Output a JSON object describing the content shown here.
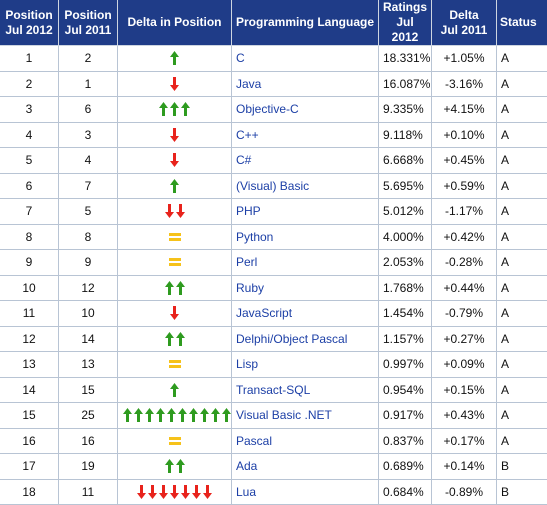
{
  "headers": {
    "pos_2012": [
      "Position",
      "Jul 2012"
    ],
    "pos_2011": [
      "Position",
      "Jul 2011"
    ],
    "delta_pos": "Delta in Position",
    "language": "Programming Language",
    "ratings": [
      "Ratings",
      "Jul 2012"
    ],
    "delta": [
      "Delta",
      "Jul 2011"
    ],
    "status": "Status"
  },
  "colors": {
    "header_bg": "#1f3c88",
    "up": "#2e9b1f",
    "down": "#e8231c",
    "same": "#f6c21a",
    "link": "#1c3fa6"
  },
  "rows": [
    {
      "pos2012": "1",
      "pos2011": "2",
      "move": "up",
      "count": 1,
      "language": "C",
      "rating": "18.331%",
      "delta": "+1.05%",
      "status": "A"
    },
    {
      "pos2012": "2",
      "pos2011": "1",
      "move": "down",
      "count": 1,
      "language": "Java",
      "rating": "16.087%",
      "delta": "-3.16%",
      "status": "A"
    },
    {
      "pos2012": "3",
      "pos2011": "6",
      "move": "up",
      "count": 3,
      "language": "Objective-C",
      "rating": "9.335%",
      "delta": "+4.15%",
      "status": "A"
    },
    {
      "pos2012": "4",
      "pos2011": "3",
      "move": "down",
      "count": 1,
      "language": "C++",
      "rating": "9.118%",
      "delta": "+0.10%",
      "status": "A"
    },
    {
      "pos2012": "5",
      "pos2011": "4",
      "move": "down",
      "count": 1,
      "language": "C#",
      "rating": "6.668%",
      "delta": "+0.45%",
      "status": "A"
    },
    {
      "pos2012": "6",
      "pos2011": "7",
      "move": "up",
      "count": 1,
      "language": "(Visual) Basic",
      "rating": "5.695%",
      "delta": "+0.59%",
      "status": "A"
    },
    {
      "pos2012": "7",
      "pos2011": "5",
      "move": "down",
      "count": 2,
      "language": "PHP",
      "rating": "5.012%",
      "delta": "-1.17%",
      "status": "A"
    },
    {
      "pos2012": "8",
      "pos2011": "8",
      "move": "same",
      "count": 1,
      "language": "Python",
      "rating": "4.000%",
      "delta": "+0.42%",
      "status": "A"
    },
    {
      "pos2012": "9",
      "pos2011": "9",
      "move": "same",
      "count": 1,
      "language": "Perl",
      "rating": "2.053%",
      "delta": "-0.28%",
      "status": "A"
    },
    {
      "pos2012": "10",
      "pos2011": "12",
      "move": "up",
      "count": 2,
      "language": "Ruby",
      "rating": "1.768%",
      "delta": "+0.44%",
      "status": "A"
    },
    {
      "pos2012": "11",
      "pos2011": "10",
      "move": "down",
      "count": 1,
      "language": "JavaScript",
      "rating": "1.454%",
      "delta": "-0.79%",
      "status": "A"
    },
    {
      "pos2012": "12",
      "pos2011": "14",
      "move": "up",
      "count": 2,
      "language": "Delphi/Object Pascal",
      "rating": "1.157%",
      "delta": "+0.27%",
      "status": "A"
    },
    {
      "pos2012": "13",
      "pos2011": "13",
      "move": "same",
      "count": 1,
      "language": "Lisp",
      "rating": "0.997%",
      "delta": "+0.09%",
      "status": "A"
    },
    {
      "pos2012": "14",
      "pos2011": "15",
      "move": "up",
      "count": 1,
      "language": "Transact-SQL",
      "rating": "0.954%",
      "delta": "+0.15%",
      "status": "A"
    },
    {
      "pos2012": "15",
      "pos2011": "25",
      "move": "up",
      "count": 10,
      "language": "Visual Basic .NET",
      "rating": "0.917%",
      "delta": "+0.43%",
      "status": "A"
    },
    {
      "pos2012": "16",
      "pos2011": "16",
      "move": "same",
      "count": 1,
      "language": "Pascal",
      "rating": "0.837%",
      "delta": "+0.17%",
      "status": "A"
    },
    {
      "pos2012": "17",
      "pos2011": "19",
      "move": "up",
      "count": 2,
      "language": "Ada",
      "rating": "0.689%",
      "delta": "+0.14%",
      "status": "B"
    },
    {
      "pos2012": "18",
      "pos2011": "11",
      "move": "down",
      "count": 7,
      "language": "Lua",
      "rating": "0.684%",
      "delta": "-0.89%",
      "status": "B"
    }
  ]
}
